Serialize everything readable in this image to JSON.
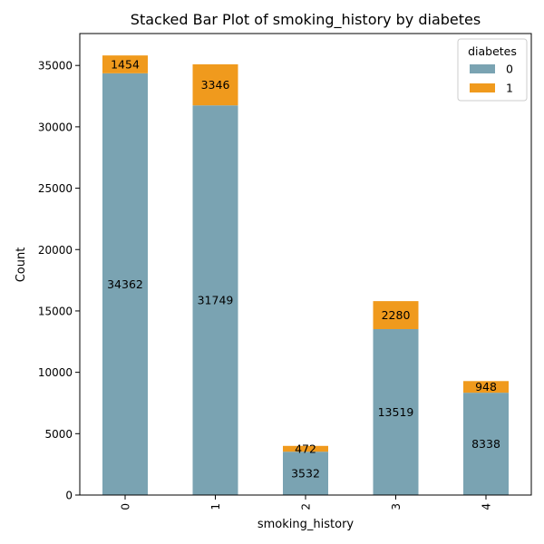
{
  "chart_data": {
    "type": "bar",
    "stacked": true,
    "title": "Stacked Bar Plot of smoking_history by diabetes",
    "xlabel": "smoking_history",
    "ylabel": "Count",
    "categories": [
      "0",
      "1",
      "2",
      "3",
      "4"
    ],
    "series": [
      {
        "name": "0",
        "color": "#7aa3b2",
        "values": [
          34362,
          31749,
          3532,
          13519,
          8338
        ]
      },
      {
        "name": "1",
        "color": "#f09a1d",
        "values": [
          1454,
          3346,
          472,
          2280,
          948
        ]
      }
    ],
    "value_labels": [
      [
        "34362",
        "31749",
        "3532",
        "13519",
        "8338"
      ],
      [
        "1454",
        "3346",
        "472",
        "2280",
        "948"
      ]
    ],
    "ylim": [
      0,
      37600
    ],
    "yticks": [
      0,
      5000,
      10000,
      15000,
      20000,
      25000,
      30000,
      35000
    ],
    "ytick_labels": [
      "0",
      "5000",
      "10000",
      "15000",
      "20000",
      "25000",
      "30000",
      "35000"
    ],
    "legend": {
      "title": "diabetes",
      "position": "top-right",
      "entries": [
        "0",
        "1"
      ]
    },
    "grid": false
  }
}
